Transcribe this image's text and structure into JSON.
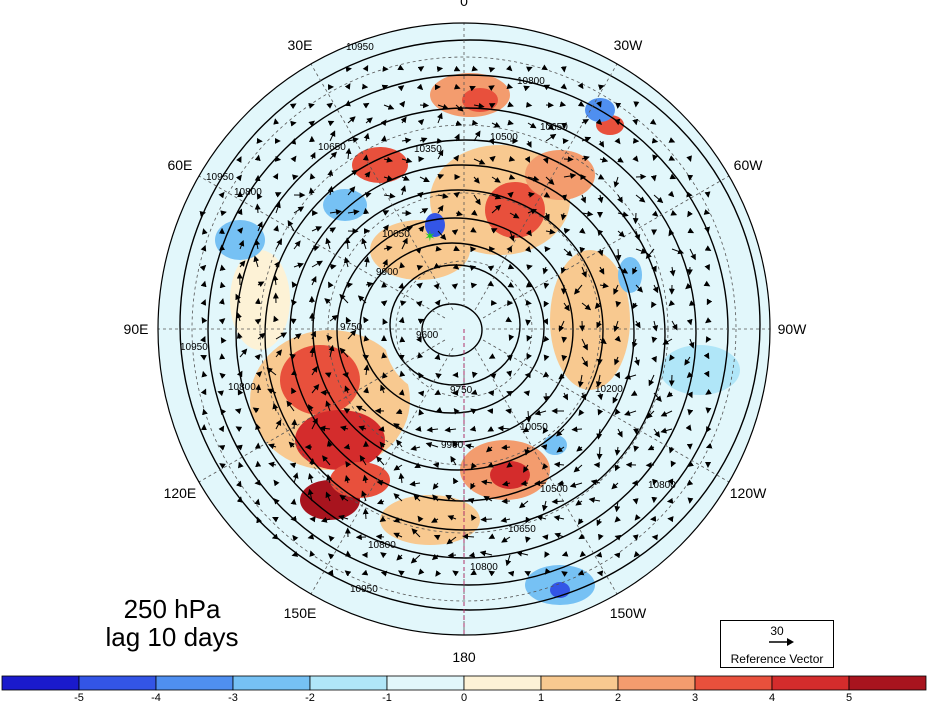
{
  "figure": {
    "level_label": "250 hPa",
    "lag_label": "lag 10 days"
  },
  "longitude_labels": [
    {
      "text": "0",
      "lon": 0
    },
    {
      "text": "30W",
      "lon": -30
    },
    {
      "text": "60W",
      "lon": -60
    },
    {
      "text": "90W",
      "lon": -90
    },
    {
      "text": "120W",
      "lon": -120
    },
    {
      "text": "150W",
      "lon": -150
    },
    {
      "text": "180",
      "lon": 180
    },
    {
      "text": "150E",
      "lon": 150
    },
    {
      "text": "120E",
      "lon": 120
    },
    {
      "text": "90E",
      "lon": 90
    },
    {
      "text": "60E",
      "lon": 60
    },
    {
      "text": "30E",
      "lon": 30
    }
  ],
  "contour_labels": [
    "10950",
    "10800",
    "10650",
    "10500",
    "10350",
    "10200",
    "10050",
    "9900",
    "9750",
    "9600"
  ],
  "reference_vector": {
    "value": "30",
    "caption": "Reference Vector"
  },
  "colorbar": {
    "tick_labels": [
      "-5",
      "-4",
      "-3",
      "-2",
      "-1",
      "0",
      "1",
      "2",
      "3",
      "4",
      "5"
    ],
    "colors": [
      "#1a1acc",
      "#3355e6",
      "#4f8ff0",
      "#76c1f4",
      "#b0e6f8",
      "#e2f7fb",
      "#fdf2d6",
      "#f8c990",
      "#f39c6e",
      "#e8503c",
      "#d42c2c",
      "#a8141e"
    ]
  }
}
